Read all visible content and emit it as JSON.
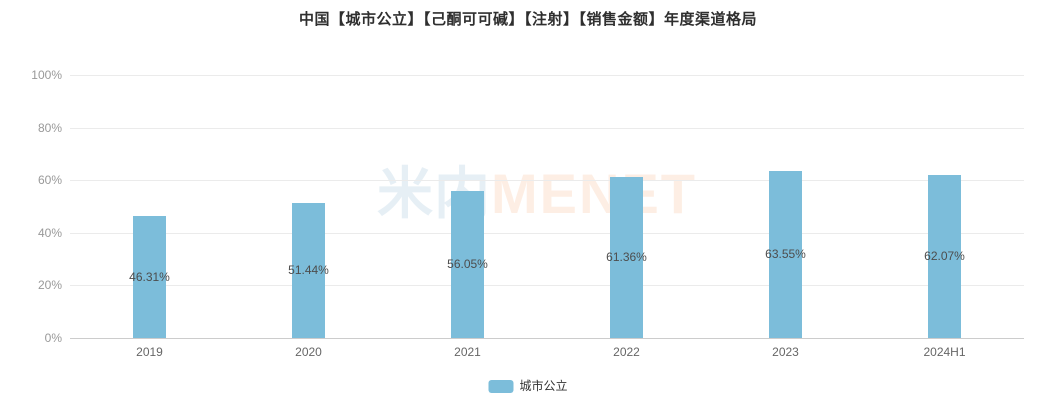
{
  "title": "中国【城市公立】【己酮可可碱】【注射】【销售金额】年度渠道格局",
  "watermark": {
    "cn": "米内",
    "en": "MENET"
  },
  "legend": {
    "position": "bottom",
    "items": [
      {
        "label": "城市公立",
        "color": "#7cbdda"
      }
    ]
  },
  "colors": {
    "bar": "#7cbdda",
    "title_text": "#2f2f2f",
    "ytick_text": "#999999",
    "xtick_text": "#666666",
    "value_label_text": "#4d4d4d",
    "gridline": "#ebebeb",
    "axis_line": "#cccccc",
    "watermark_cn": "rgba(52,120,170,0.12)",
    "watermark_en": "rgba(240,120,50,0.13)"
  },
  "chart_data": {
    "type": "bar",
    "title": "中国【城市公立】【己酮可可碱】【注射】【销售金额】年度渠道格局",
    "categories": [
      "2019",
      "2020",
      "2021",
      "2022",
      "2023",
      "2024H1"
    ],
    "series": [
      {
        "name": "城市公立",
        "values": [
          46.31,
          51.44,
          56.05,
          61.36,
          63.55,
          62.07
        ]
      }
    ],
    "value_labels": [
      "46.31%",
      "51.44%",
      "56.05%",
      "61.36%",
      "63.55%",
      "62.07%"
    ],
    "xlabel": "",
    "ylabel": "",
    "ylim": [
      0,
      100
    ],
    "yticks": [
      "0%",
      "20%",
      "40%",
      "60%",
      "80%",
      "100%"
    ],
    "ytick_values": [
      0,
      20,
      40,
      60,
      80,
      100
    ],
    "grid": true,
    "legend_position": "bottom"
  }
}
